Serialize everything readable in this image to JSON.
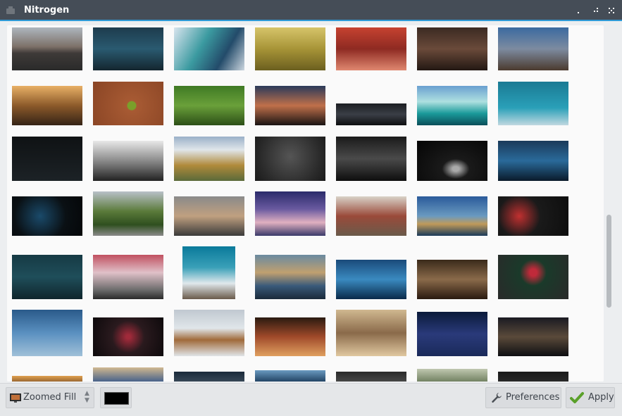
{
  "window": {
    "title": "Nitrogen"
  },
  "footer": {
    "mode_select": {
      "selected": "Zoomed Fill"
    },
    "bg_color": "#000000",
    "preferences_label": "Preferences",
    "apply_label": "Apply"
  },
  "thumbnails": [
    {
      "n": "road-mountains",
      "bg": "linear-gradient(180deg,#aeb6be 0%,#7c7068 45%,#3e3a38 60%,#2a2a2a 100%)"
    },
    {
      "n": "blue-forest",
      "bg": "linear-gradient(180deg,#1d3b4d 0%,#2a5a70 50%,#14262f 100%)"
    },
    {
      "n": "anime-girl-teal",
      "bg": "linear-gradient(120deg,#d8e4ee 0%,#3b9aa0 40%,#234b6a 70%,#cdd7e0 100%)"
    },
    {
      "n": "golden-grass",
      "bg": "linear-gradient(180deg,#d6c46a 0%,#a79437 50%,#6b5f1f 100%)"
    },
    {
      "n": "red-autumn-trees",
      "bg": "linear-gradient(180deg,#c64230 0%,#8e2a22 50%,#e08870 100%)"
    },
    {
      "n": "man-in-room",
      "bg": "linear-gradient(180deg,#3b2a22 0%,#6a4a3a 50%,#231813 100%)"
    },
    {
      "n": "blue-city-dusk",
      "bg": "linear-gradient(180deg,#3b6aa0 0%,#7d8ba0 50%,#4b3a2e 100%)"
    },
    {
      "n": "sunset-bridge",
      "bg": "linear-gradient(180deg,#e8b066 0%,#8c5a2a 50%,#352316 100%)"
    },
    {
      "n": "leather-pea",
      "bg": "radial-gradient(circle at 55% 55%,#7aa02a 0 6px,#a75a33 7px,#8a4525 100%)"
    },
    {
      "n": "green-frog",
      "bg": "linear-gradient(180deg,#3f7a24 0%,#6aa03a 50%,#2c4f17 100%)"
    },
    {
      "n": "couple-sunset",
      "bg": "linear-gradient(180deg,#2a3a5a 0%,#c0704a 50%,#1a1414 100%)"
    },
    {
      "n": "dark-car",
      "bg": "linear-gradient(180deg,#1c1e22 0%,#3a3e46 50%,#0e0f11 100%)"
    },
    {
      "n": "tropical-lake",
      "bg": "linear-gradient(180deg,#6aa0d0 0%,#aee0e0 40%,#1a9a9a 70%,#0b4f5a 100%)"
    },
    {
      "n": "anime-quote",
      "bg": "linear-gradient(180deg,#1a7a94 0%,#2aa0b8 60%,#c0d8e0 100%)"
    },
    {
      "n": "ubuntu-dark",
      "bg": "linear-gradient(180deg,#0f1214 0%,#1c2226 100%)"
    },
    {
      "n": "bw-woman",
      "bg": "linear-gradient(180deg,#e8e8e8 0%,#8a8a8a 50%,#222 100%)"
    },
    {
      "n": "autumn-valley",
      "bg": "linear-gradient(180deg,#9ab0c8 0%,#e0e6ea 30%,#b08a3a 65%,#5a6a3a 100%)"
    },
    {
      "n": "grey-gradient",
      "bg": "radial-gradient(circle at 50% 45%,#555 0%,#2a2a2a 70%,#1a1a1a 100%)"
    },
    {
      "n": "night-street",
      "bg": "linear-gradient(180deg,#1a1a1a 0%,#4a4a4a 50%,#0e0e0e 100%)"
    },
    {
      "n": "dark-car-light",
      "bg": "radial-gradient(ellipse at 55% 70%,#aaa 0 6%,#1a1a1a 25%,#050505 100%)"
    },
    {
      "n": "blue-lamp-tree",
      "bg": "linear-gradient(180deg,#1a3a5a 0%,#2a6a9a 50%,#0a1a2a 100%)"
    },
    {
      "n": "dark-logo-blue",
      "bg": "radial-gradient(circle at 40% 50%,#1a4a6a 0%,#0a1014 55%,#050709 100%)"
    },
    {
      "n": "big-tree-road",
      "bg": "linear-gradient(180deg,#b8c0c8 0%,#5a7a3a 45%,#2f4f1f 75%,#8a8a8a 100%)"
    },
    {
      "n": "pug",
      "bg": "linear-gradient(180deg,#8a8a8a 0%,#c0a080 50%,#3a3a3a 100%)"
    },
    {
      "n": "city-clouds",
      "bg": "linear-gradient(180deg,#2a2a6a 0%,#6a5aa0 40%,#e0b0c0 70%,#3a3a6a 100%)"
    },
    {
      "n": "gun-table",
      "bg": "linear-gradient(180deg,#d8d2c8 0%,#9a4a3a 50%,#6a5a4a 100%)"
    },
    {
      "n": "city-harbor",
      "bg": "linear-gradient(180deg,#2a5a9a 0%,#6a9ac0 50%,#c09a5a 70%,#1a3a5a 100%)"
    },
    {
      "n": "world-flags",
      "bg": "radial-gradient(circle at 30% 50%,#c03030 0%,#1a1a1a 40%,#0e0e0e 100%)"
    },
    {
      "n": "ubuntu-mesh",
      "bg": "linear-gradient(180deg,#163a44 0%,#1f4e5a 50%,#0f252c 100%)"
    },
    {
      "n": "pink-tree-path",
      "bg": "linear-gradient(180deg,#c05060 0%,#e0c0c8 40%,#6a6a6a 80%,#2a2a2a 100%)"
    },
    {
      "n": "mountain-snow",
      "bg": "linear-gradient(180deg,#0a7a9a 0%,#3aa0b8 40%,#e0e8ec 70%,#6a5a4a 100%)"
    },
    {
      "n": "bridge-lake",
      "bg": "linear-gradient(180deg,#6a8aa0 0%,#c0a070 40%,#3a5a7a 70%,#1a2a3a 100%)"
    },
    {
      "n": "blue-skyline",
      "bg": "linear-gradient(180deg,#1a4a7a 0%,#3a8ac0 50%,#0a2a4a 100%)"
    },
    {
      "n": "theater-room",
      "bg": "linear-gradient(180deg,#3a2a1a 0%,#8a6a4a 50%,#2a1a10 100%)"
    },
    {
      "n": "green-anime",
      "bg": "radial-gradient(circle at 50% 40%,#c02a3a 0 8%,#1a3a2a 30%,#2a2a2a 100%)"
    },
    {
      "n": "husky-ice",
      "bg": "linear-gradient(180deg,#2a5a8a 0%,#5a90c0 50%,#a0c0d8 100%)"
    },
    {
      "n": "dark-flowers",
      "bg": "radial-gradient(circle at 50% 50%,#a02a3a 0 5%,#2a1a1e 40%,#0e0a0c 100%)"
    },
    {
      "n": "winter-forest",
      "bg": "linear-gradient(180deg,#c0c8d0 0%,#e0e6ea 40%,#a06a3a 65%,#e0e4e8 100%)"
    },
    {
      "n": "red-forest",
      "bg": "linear-gradient(180deg,#2a1a10 0%,#a04a2a 50%,#e0a060 100%)"
    },
    {
      "n": "desert-fog",
      "bg": "linear-gradient(180deg,#d0b890 0%,#8a6a4a 50%,#e0c8a0 100%)"
    },
    {
      "n": "city-reflection",
      "bg": "linear-gradient(180deg,#0a1a3a 0%,#2a3a7a 50%,#1a2a5a 100%)"
    },
    {
      "n": "city-street",
      "bg": "linear-gradient(180deg,#1a1a22 0%,#5a4a3a 50%,#0e0e12 100%)"
    },
    {
      "n": "partial-orange",
      "bg": "linear-gradient(180deg,#e0a050 0%,#8a5a2a 100%)"
    },
    {
      "n": "partial-globe",
      "bg": "linear-gradient(180deg,#d0b890 0%,#3a5a8a 100%)"
    },
    {
      "n": "partial-dark1",
      "bg": "linear-gradient(180deg,#1a2a3a 0%,#3a4a5a 100%)"
    },
    {
      "n": "partial-blue",
      "bg": "linear-gradient(180deg,#6a9ac0 0%,#1a3a5a 100%)"
    },
    {
      "n": "partial-dark2",
      "bg": "linear-gradient(180deg,#2a2a2a 0%,#4a4a4a 100%)"
    },
    {
      "n": "partial-light",
      "bg": "linear-gradient(180deg,#c0c8b0 0%,#6a7a5a 100%)"
    },
    {
      "n": "partial-dark3",
      "bg": "linear-gradient(180deg,#1a1a1a 0%,#2a2a2a 100%)"
    }
  ]
}
